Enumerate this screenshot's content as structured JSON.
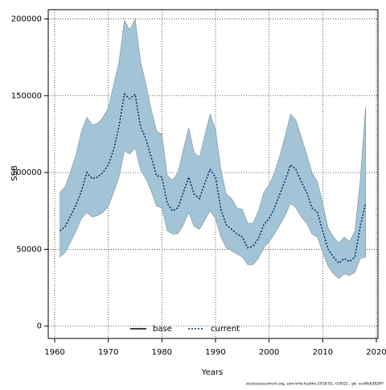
{
  "chart_data": {
    "type": "line",
    "xlabel": "Years",
    "ylabel": "SSB",
    "footnote": "stockassessment.org, sam-tmb-fsaithe-2018-02, r10022 , git: ecd9e6382ff7",
    "x": [
      1961,
      1962,
      1963,
      1964,
      1965,
      1966,
      1967,
      1968,
      1969,
      1970,
      1971,
      1972,
      1973,
      1974,
      1975,
      1976,
      1977,
      1978,
      1979,
      1980,
      1981,
      1982,
      1983,
      1984,
      1985,
      1986,
      1987,
      1988,
      1989,
      1990,
      1991,
      1992,
      1993,
      1994,
      1995,
      1996,
      1997,
      1998,
      1999,
      2000,
      2001,
      2002,
      2003,
      2004,
      2005,
      2006,
      2007,
      2008,
      2009,
      2010,
      2011,
      2012,
      2013,
      2014,
      2015,
      2016,
      2017,
      2018
    ],
    "series": [
      {
        "name": "base",
        "color": "#000000",
        "style": "solid",
        "values": [
          null,
          null,
          null,
          null,
          null,
          null,
          null,
          null,
          null,
          null,
          null,
          null,
          null,
          null,
          null,
          null,
          null,
          null,
          null,
          null,
          null,
          null,
          null,
          null,
          null,
          null,
          null,
          null,
          null,
          null,
          null,
          null,
          null,
          null,
          null,
          null,
          null,
          null,
          null,
          null,
          null,
          null,
          null,
          null,
          null,
          null,
          null,
          null,
          null,
          null,
          null,
          null,
          null,
          null,
          null,
          null,
          null,
          null
        ]
      },
      {
        "name": "current",
        "color": "#08306b",
        "style": "dotted",
        "values": [
          62000,
          65000,
          72000,
          79000,
          88000,
          100000,
          96000,
          97000,
          100000,
          105000,
          115000,
          130000,
          151000,
          148000,
          151000,
          130000,
          122000,
          110000,
          98000,
          97000,
          80000,
          75000,
          77000,
          87000,
          97000,
          86000,
          83000,
          93000,
          102000,
          97000,
          76000,
          66000,
          63000,
          60000,
          58000,
          51000,
          52000,
          57000,
          66000,
          70000,
          77000,
          86000,
          95000,
          105000,
          102000,
          94000,
          87000,
          77000,
          74000,
          62000,
          50000,
          45000,
          41000,
          44000,
          42000,
          45000,
          65000,
          80000
        ]
      }
    ],
    "band": {
      "color": "#a3c4d6",
      "lower": [
        45000,
        48000,
        55000,
        62000,
        70000,
        74000,
        71000,
        72000,
        74000,
        78000,
        87000,
        97000,
        114000,
        112000,
        116000,
        102000,
        96000,
        88000,
        78000,
        77000,
        62000,
        60000,
        60000,
        66000,
        74000,
        65000,
        63000,
        69000,
        75000,
        70000,
        58000,
        51000,
        49000,
        47000,
        45000,
        40000,
        40000,
        44000,
        51000,
        55000,
        60000,
        66000,
        72000,
        80000,
        77000,
        71000,
        67000,
        60000,
        58000,
        48000,
        39000,
        34000,
        31000,
        34000,
        33000,
        35000,
        44000,
        45000
      ],
      "upper": [
        87000,
        91000,
        101000,
        112000,
        127000,
        136000,
        131000,
        132000,
        136000,
        142000,
        157000,
        172000,
        199000,
        193000,
        200000,
        173000,
        158000,
        141000,
        127000,
        125000,
        98000,
        95000,
        100000,
        115000,
        129000,
        113000,
        110000,
        124000,
        138000,
        128000,
        102000,
        86000,
        83000,
        77000,
        76000,
        67000,
        67000,
        75000,
        87000,
        92000,
        100000,
        111000,
        124000,
        138000,
        134000,
        123000,
        112000,
        100000,
        94000,
        80000,
        64000,
        58000,
        54000,
        58000,
        55000,
        62000,
        95000,
        143000
      ]
    },
    "xlim": [
      1958.8,
      2020.3
    ],
    "ylim": [
      -8000,
      206000
    ],
    "xticks": [
      1960,
      1970,
      1980,
      1990,
      2000,
      2010,
      2020
    ],
    "yticks": [
      0,
      50000,
      100000,
      150000,
      200000
    ],
    "grid": true
  }
}
